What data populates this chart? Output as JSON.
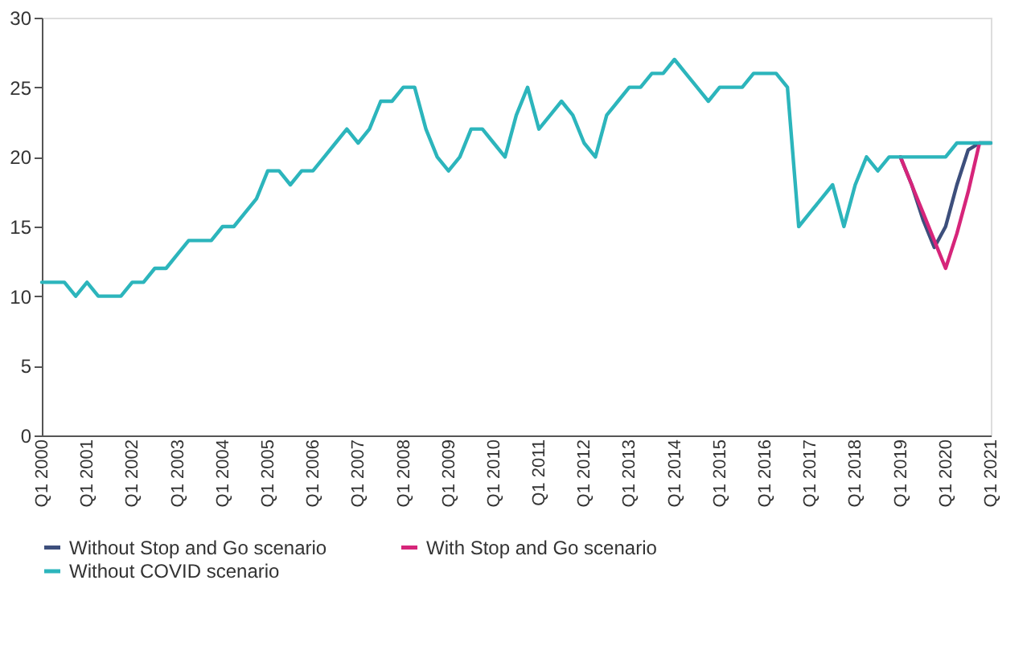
{
  "chart_data": {
    "type": "line",
    "categories": [
      "Q1 2000",
      null,
      null,
      null,
      "Q1 2001",
      null,
      null,
      null,
      "Q1 2002",
      null,
      null,
      null,
      "Q1 2003",
      null,
      null,
      null,
      "Q1 2004",
      null,
      null,
      null,
      "Q1 2005",
      null,
      null,
      null,
      "Q1 2006",
      null,
      null,
      null,
      "Q1 2007",
      null,
      null,
      null,
      "Q1 2008",
      null,
      null,
      null,
      "Q1 2009",
      null,
      null,
      null,
      "Q1 2010",
      null,
      null,
      null,
      "Q1 2011",
      null,
      null,
      null,
      "Q1 2012",
      null,
      null,
      null,
      "Q1 2013",
      null,
      null,
      null,
      "Q1 2014",
      null,
      null,
      null,
      "Q1 2015",
      null,
      null,
      null,
      "Q1 2016",
      null,
      null,
      null,
      "Q1 2017",
      null,
      null,
      null,
      "Q1 2018",
      null,
      null,
      null,
      "Q1 2019",
      null,
      null,
      null,
      "Q1 2020",
      null,
      null,
      null,
      "Q1 2021"
    ],
    "series": [
      {
        "name": "Without Stop and Go scenario",
        "color": "#3d4f7c",
        "values": [
          null,
          null,
          null,
          null,
          null,
          null,
          null,
          null,
          null,
          null,
          null,
          null,
          null,
          null,
          null,
          null,
          null,
          null,
          null,
          null,
          null,
          null,
          null,
          null,
          null,
          null,
          null,
          null,
          null,
          null,
          null,
          null,
          null,
          null,
          null,
          null,
          null,
          null,
          null,
          null,
          null,
          null,
          null,
          null,
          null,
          null,
          null,
          null,
          null,
          null,
          null,
          null,
          null,
          null,
          null,
          null,
          null,
          null,
          null,
          null,
          null,
          null,
          null,
          null,
          null,
          null,
          null,
          null,
          null,
          null,
          null,
          null,
          null,
          null,
          null,
          null,
          20,
          18,
          15.5,
          13.5,
          15,
          18,
          20.5,
          21,
          21
        ]
      },
      {
        "name": "With Stop and Go scenario",
        "color": "#d6257a",
        "values": [
          null,
          null,
          null,
          null,
          null,
          null,
          null,
          null,
          null,
          null,
          null,
          null,
          null,
          null,
          null,
          null,
          null,
          null,
          null,
          null,
          null,
          null,
          null,
          null,
          null,
          null,
          null,
          null,
          null,
          null,
          null,
          null,
          null,
          null,
          null,
          null,
          null,
          null,
          null,
          null,
          null,
          null,
          null,
          null,
          null,
          null,
          null,
          null,
          null,
          null,
          null,
          null,
          null,
          null,
          null,
          null,
          null,
          null,
          null,
          null,
          null,
          null,
          null,
          null,
          null,
          null,
          null,
          null,
          null,
          null,
          null,
          null,
          null,
          null,
          null,
          null,
          20,
          18,
          16,
          14,
          12,
          14.5,
          17.5,
          21,
          null
        ]
      },
      {
        "name": "Without COVID scenario",
        "color": "#2cb5bc",
        "values": [
          11,
          11,
          11,
          10,
          11,
          10,
          10,
          10,
          11,
          11,
          12,
          12,
          13,
          14,
          14,
          14,
          15,
          15,
          16,
          17,
          19,
          19,
          18,
          19,
          19,
          20,
          21,
          22,
          21,
          22,
          24,
          24,
          25,
          25,
          22,
          20,
          19,
          20,
          22,
          22,
          21,
          20,
          23,
          25,
          22,
          23,
          24,
          23,
          21,
          20,
          23,
          24,
          25,
          25,
          26,
          26,
          27,
          26,
          25,
          24,
          25,
          25,
          25,
          26,
          26,
          26,
          25,
          15,
          16,
          17,
          18,
          15,
          18,
          20,
          19,
          20,
          20,
          20,
          20,
          20,
          20,
          21,
          21,
          21,
          21
        ]
      }
    ],
    "ylim": [
      0,
      30
    ],
    "yticks": [
      0,
      5,
      10,
      15,
      20,
      25,
      30
    ],
    "grid": false,
    "legend": "bottom"
  }
}
